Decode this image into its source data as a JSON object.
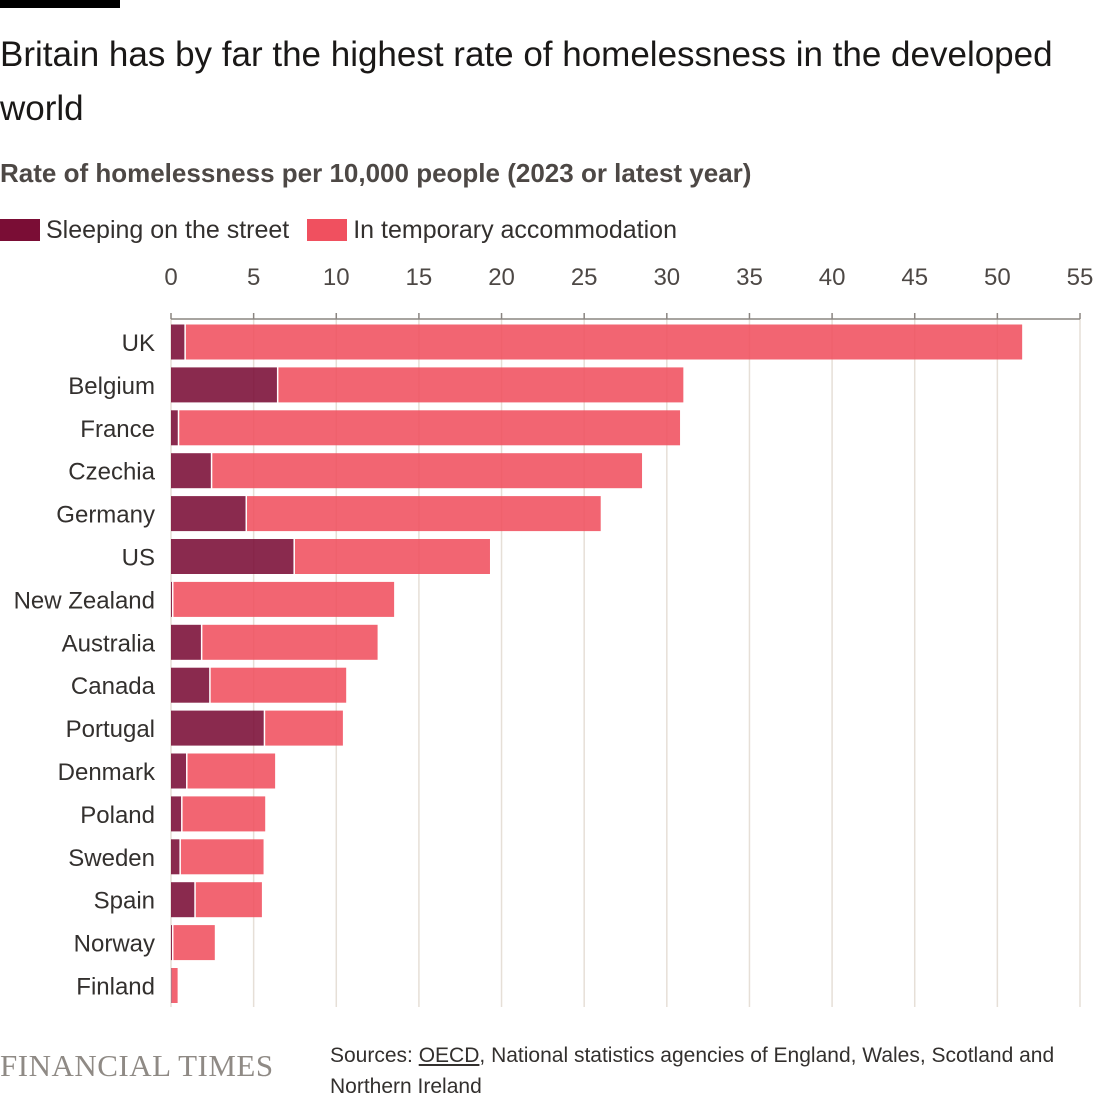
{
  "title": "Britain has by far the highest rate of homelessness in the developed world",
  "subtitle": "Rate of homelessness per 10,000 people (2023 or latest year)",
  "colors": {
    "street": "#7a0d35",
    "temporary": "#f0505f"
  },
  "sources": {
    "prefix": "Sources: ",
    "link": "OECD",
    "rest": ", National statistics agencies of England, Wales, Scotland and Northern Ireland"
  },
  "brand": "FINANCIAL TIMES",
  "chart_data": {
    "type": "bar",
    "orientation": "horizontal",
    "stacked": true,
    "title": "Britain has by far the highest rate of homelessness in the developed world",
    "subtitle": "Rate of homelessness per 10,000 people (2023 or latest year)",
    "xlim": [
      0,
      55
    ],
    "xticks": [
      0,
      5,
      10,
      15,
      20,
      25,
      30,
      35,
      40,
      45,
      50,
      55
    ],
    "grid": true,
    "legend_position": "top-left",
    "categories": [
      "UK",
      "Belgium",
      "France",
      "Czechia",
      "Germany",
      "US",
      "New Zealand",
      "Australia",
      "Canada",
      "Portugal",
      "Denmark",
      "Poland",
      "Sweden",
      "Spain",
      "Norway",
      "Finland"
    ],
    "series": [
      {
        "name": "Sleeping on the street",
        "color": "#7a0d35",
        "values": [
          0.9,
          6.5,
          0.5,
          2.5,
          4.6,
          7.5,
          0.15,
          1.9,
          2.4,
          5.7,
          1.0,
          0.7,
          0.6,
          1.5,
          0.15,
          0.05
        ]
      },
      {
        "name": "In temporary accommodation",
        "color": "#f0505f",
        "values": [
          50.6,
          24.5,
          30.3,
          26.0,
          21.4,
          11.8,
          13.35,
          10.6,
          8.2,
          4.7,
          5.3,
          5.0,
          5.0,
          4.0,
          2.5,
          0.35
        ]
      }
    ]
  }
}
